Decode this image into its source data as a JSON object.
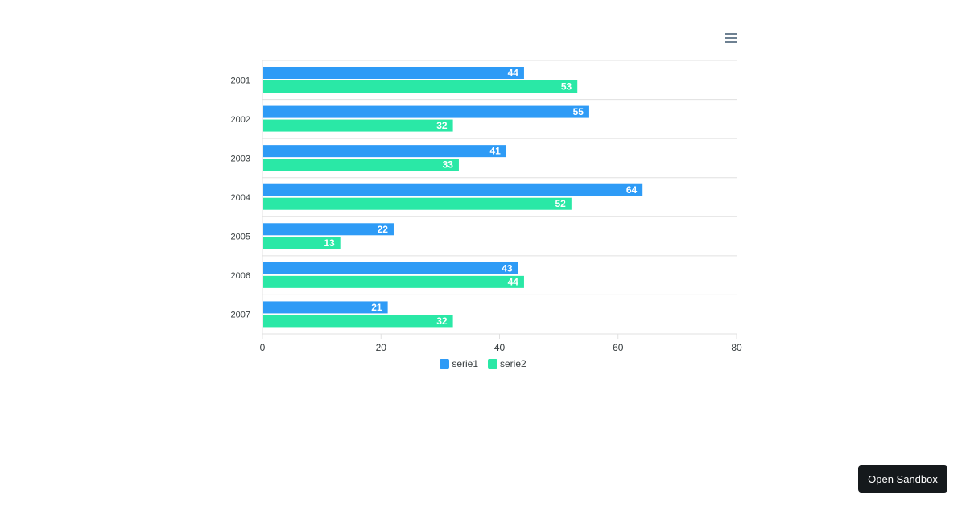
{
  "colors": {
    "serie1": "#2e9bf6",
    "serie2": "#2ae8a6",
    "grid": "#e0e0e0",
    "axis": "#373d3f"
  },
  "toolbar": {
    "menu_icon": "hamburger-menu-icon"
  },
  "sandbox": {
    "label": "Open Sandbox"
  },
  "chart_data": {
    "type": "bar",
    "orientation": "horizontal",
    "categories": [
      "2001",
      "2002",
      "2003",
      "2004",
      "2005",
      "2006",
      "2007"
    ],
    "series": [
      {
        "name": "serie1",
        "values": [
          44,
          55,
          41,
          64,
          22,
          43,
          21
        ]
      },
      {
        "name": "serie2",
        "values": [
          53,
          32,
          33,
          52,
          13,
          44,
          32
        ]
      }
    ],
    "x_ticks": [
      0,
      20,
      40,
      60,
      80
    ],
    "xlim": [
      0,
      80
    ],
    "data_labels": true,
    "legend_position": "bottom-center",
    "title": "",
    "xlabel": "",
    "ylabel": ""
  }
}
